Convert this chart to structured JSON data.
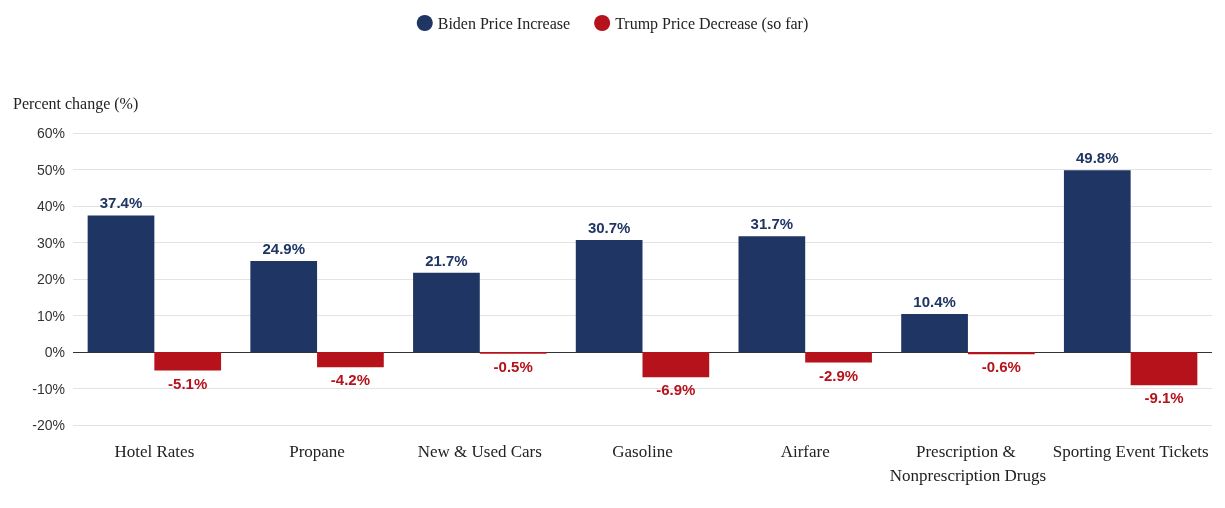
{
  "chart_data": {
    "type": "bar",
    "ylabel": "Percent change (%)",
    "categories": [
      "Hotel Rates",
      "Propane",
      "New & Used Cars",
      "Gasoline",
      "Airfare",
      "Prescription & Nonprescription Drugs",
      "Sporting Event Tickets"
    ],
    "series": [
      {
        "name": "Biden Price Increase",
        "color": "#1f3564",
        "values": [
          37.4,
          24.9,
          21.7,
          30.7,
          31.7,
          10.4,
          49.8
        ],
        "value_labels": [
          "37.4%",
          "24.9%",
          "21.7%",
          "30.7%",
          "31.7%",
          "10.4%",
          "49.8%"
        ]
      },
      {
        "name": "Trump Price Decrease (so far)",
        "color": "#b5121b",
        "values": [
          -5.1,
          -4.2,
          -0.5,
          -6.9,
          -2.9,
          -0.6,
          -9.1
        ],
        "value_labels": [
          "-5.1%",
          "-4.2%",
          "-0.5%",
          "-6.9%",
          "-2.9%",
          "-0.6%",
          "-9.1%"
        ]
      }
    ],
    "ylim": [
      -20,
      60
    ],
    "yticks": [
      {
        "value": -20,
        "label": "-20%"
      },
      {
        "value": -10,
        "label": "-10%"
      },
      {
        "value": 0,
        "label": "0%"
      },
      {
        "value": 10,
        "label": "10%"
      },
      {
        "value": 20,
        "label": "20%"
      },
      {
        "value": 30,
        "label": "30%"
      },
      {
        "value": 40,
        "label": "40%"
      },
      {
        "value": 50,
        "label": "50%"
      },
      {
        "value": 60,
        "label": "60%"
      }
    ],
    "grid": "y",
    "legend": "top"
  }
}
